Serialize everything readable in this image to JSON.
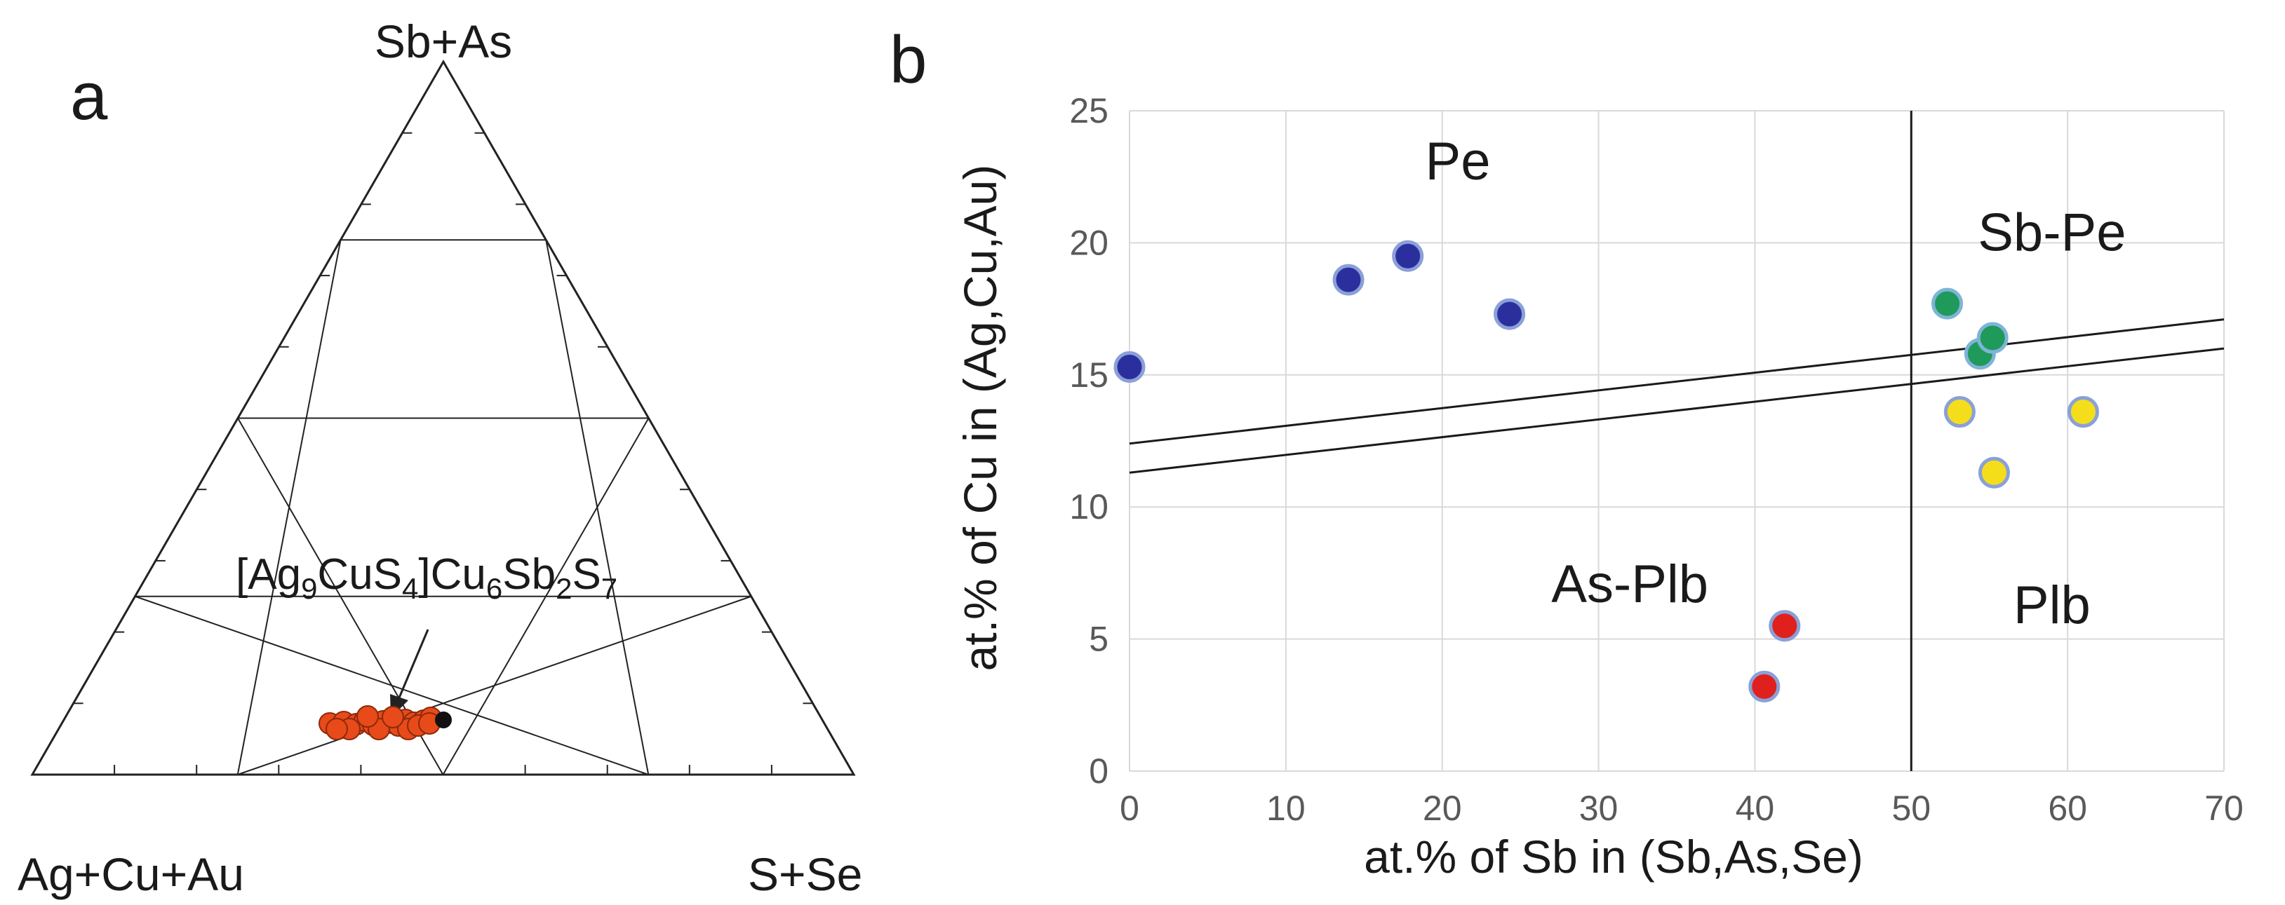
{
  "panel_a": {
    "letter": "a",
    "corners": {
      "top": "Sb+As",
      "left": "Ag+Cu+Au",
      "right": "S+Se"
    },
    "formula": {
      "segments": [
        {
          "t": "[Ag",
          "s": "normal"
        },
        {
          "t": "9",
          "s": "sub"
        },
        {
          "t": "CuS",
          "s": "normal"
        },
        {
          "t": "4",
          "s": "sub"
        },
        {
          "t": "]Cu",
          "s": "normal"
        },
        {
          "t": "6",
          "s": "sub"
        },
        {
          "t": "Sb",
          "s": "normal"
        },
        {
          "t": "2",
          "s": "sub"
        },
        {
          "t": "S",
          "s": "normal"
        },
        {
          "t": "7",
          "s": "sub"
        }
      ]
    },
    "colors": {
      "cluster": "#e84a1a",
      "cluster_edge": "#8c2a0c",
      "formula_point": "#111111",
      "line": "#222222"
    }
  },
  "chart_data": {
    "type": "scatter",
    "letter": "b",
    "xlabel": "at.% of Sb in (Sb,As,Se)",
    "ylabel": "at.% of Cu in (Ag,Cu,Au)",
    "xlim": [
      0,
      70
    ],
    "ylim": [
      0,
      25
    ],
    "xticks": [
      0,
      10,
      20,
      30,
      40,
      50,
      60,
      70
    ],
    "yticks": [
      0,
      5,
      10,
      15,
      20,
      25
    ],
    "grid": true,
    "series": [
      {
        "name": "Pe",
        "color": "#2b2f9e",
        "edge": "#8aa0d8",
        "points": [
          [
            0,
            15.3
          ],
          [
            14,
            18.6
          ],
          [
            17.8,
            19.5
          ],
          [
            24.3,
            17.3
          ]
        ]
      },
      {
        "name": "Sb-Pe",
        "color": "#1f9a5a",
        "edge": "#7fb4d8",
        "points": [
          [
            52.3,
            17.7
          ],
          [
            54.4,
            15.8
          ],
          [
            55.2,
            16.4
          ]
        ]
      },
      {
        "name": "Plb",
        "color": "#f4de1c",
        "edge": "#8aa0d8",
        "points": [
          [
            53.1,
            13.6
          ],
          [
            55.3,
            11.3
          ],
          [
            61,
            13.6
          ]
        ]
      },
      {
        "name": "As-Plb",
        "color": "#e0201c",
        "edge": "#8aa0d8",
        "points": [
          [
            40.6,
            3.2
          ],
          [
            41.9,
            5.5
          ]
        ]
      }
    ],
    "lines": [
      {
        "from": [
          0,
          12.4
        ],
        "to": [
          70,
          17.1
        ]
      },
      {
        "from": [
          0,
          11.3
        ],
        "to": [
          70,
          16.0
        ]
      }
    ],
    "vline_x": 50,
    "regions": [
      {
        "label": "Pe",
        "x": 21,
        "y": 22.4
      },
      {
        "label": "Sb-Pe",
        "x": 59,
        "y": 19.7
      },
      {
        "label": "As-Plb",
        "x": 32,
        "y": 6.4
      },
      {
        "label": "Plb",
        "x": 59,
        "y": 5.6
      }
    ]
  }
}
